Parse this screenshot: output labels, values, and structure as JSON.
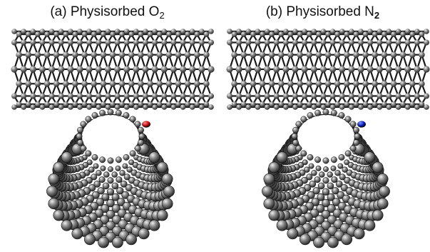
{
  "panels": [
    {
      "id": "a",
      "label_prefix": "(a) Physisorbed O",
      "label_subscript": "2",
      "molecule_color": "#cc1414",
      "molecule_highlight": "#ff8888"
    },
    {
      "id": "b",
      "label_prefix": "(b) Physisorbed N",
      "label_subscript": "2",
      "molecule_color": "#1428c8",
      "molecule_highlight": "#8899ff"
    }
  ],
  "atom_color": "#8a8a8a",
  "atom_highlight": "#eeeeee",
  "atom_shadow": "#2a2a2a"
}
